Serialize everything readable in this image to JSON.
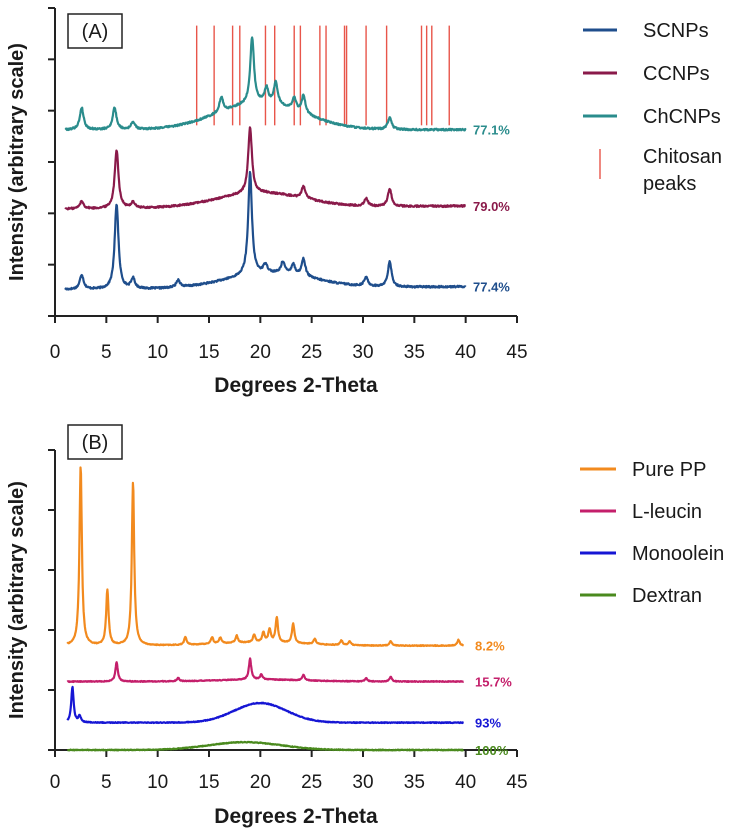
{
  "chart_data": [
    {
      "type": "line",
      "panel_label": "(A)",
      "xlabel": "Degrees 2-Theta",
      "ylabel": "Intensity (arbitrary scale)",
      "xlim": [
        0,
        45
      ],
      "x_ticks": [
        "0",
        "5",
        "10",
        "15",
        "20",
        "25",
        "30",
        "35",
        "40",
        "45"
      ],
      "y_tick_count": 7,
      "grid": false,
      "legend_position": "right",
      "series": [
        {
          "name": "SCNPs",
          "color": "#1f4e8c",
          "offset": 0.0,
          "crystallinity": "77.4%",
          "baseline_start": 0.18,
          "baseline_end": 0.2,
          "hump_center": 21,
          "hump_height": 0.1,
          "hump_width": 6,
          "peaks": [
            [
              2.6,
              0.1
            ],
            [
              6.0,
              0.58
            ],
            [
              7.6,
              0.07
            ],
            [
              12.0,
              0.05
            ],
            [
              19.0,
              0.7
            ],
            [
              20.5,
              0.06
            ],
            [
              22.2,
              0.08
            ],
            [
              23.2,
              0.07
            ],
            [
              24.2,
              0.12
            ],
            [
              30.3,
              0.06
            ],
            [
              32.6,
              0.17
            ]
          ]
        },
        {
          "name": "CCNPs",
          "color": "#8a1a4a",
          "offset": 0.55,
          "crystallinity": "79.0%",
          "baseline_start": 0.18,
          "baseline_end": 0.2,
          "hump_center": 20,
          "hump_height": 0.1,
          "hump_width": 6,
          "peaks": [
            [
              2.6,
              0.05
            ],
            [
              6.0,
              0.4
            ],
            [
              7.6,
              0.04
            ],
            [
              19.0,
              0.45
            ],
            [
              24.2,
              0.08
            ],
            [
              30.3,
              0.05
            ],
            [
              32.6,
              0.12
            ]
          ]
        },
        {
          "name": "ChCNPs",
          "color": "#2a8c8c",
          "offset": 1.05,
          "crystallinity": "77.1%",
          "baseline_start": 0.22,
          "baseline_end": 0.22,
          "hump_center": 20,
          "hump_height": 0.18,
          "hump_width": 6,
          "peaks": [
            [
              2.6,
              0.15
            ],
            [
              5.8,
              0.15
            ],
            [
              7.6,
              0.05
            ],
            [
              16.2,
              0.1
            ],
            [
              19.2,
              0.45
            ],
            [
              20.6,
              0.1
            ],
            [
              21.5,
              0.15
            ],
            [
              23.3,
              0.08
            ],
            [
              24.2,
              0.12
            ],
            [
              32.6,
              0.08
            ]
          ]
        }
      ],
      "reference": {
        "name": "Chitosan peaks",
        "color": "#e8554a",
        "positions": [
          13.8,
          15.5,
          17.3,
          18.0,
          20.5,
          21.4,
          23.3,
          23.9,
          25.8,
          26.4,
          28.2,
          28.4,
          30.3,
          32.3,
          35.7,
          36.2,
          36.7,
          38.4
        ]
      },
      "legend": [
        "SCNPs",
        "CCNPs",
        "ChCNPs",
        "Chitosan peaks"
      ]
    },
    {
      "type": "line",
      "panel_label": "(B)",
      "xlabel": "Degrees 2-Theta",
      "ylabel": "Intensity (arbitrary scale)",
      "xlim": [
        0,
        45
      ],
      "x_ticks": [
        "0",
        "5",
        "10",
        "15",
        "20",
        "25",
        "30",
        "35",
        "40",
        "45"
      ],
      "y_tick_count": 6,
      "grid": false,
      "legend_position": "right",
      "series": [
        {
          "name": "Pure PP",
          "color": "#f28a1e",
          "offset": 1.6,
          "crystallinity": "8.2%",
          "baseline_start": 0.0,
          "baseline_end": 0.0,
          "hump_center": 20,
          "hump_height": 0.05,
          "hump_width": 6,
          "peaks": [
            [
              2.5,
              2.75
            ],
            [
              5.1,
              0.85
            ],
            [
              7.6,
              2.5
            ],
            [
              12.7,
              0.12
            ],
            [
              15.3,
              0.1
            ],
            [
              16.1,
              0.09
            ],
            [
              17.7,
              0.11
            ],
            [
              19.4,
              0.12
            ],
            [
              20.3,
              0.15
            ],
            [
              20.9,
              0.2
            ],
            [
              21.6,
              0.38
            ],
            [
              23.2,
              0.3
            ],
            [
              25.3,
              0.08
            ],
            [
              27.9,
              0.07
            ],
            [
              28.7,
              0.06
            ],
            [
              32.7,
              0.07
            ],
            [
              39.3,
              0.09
            ]
          ]
        },
        {
          "name": "L-leucin",
          "color": "#c41f6b",
          "offset": 1.05,
          "crystallinity": "15.7%",
          "baseline_start": 0.0,
          "baseline_end": 0.0,
          "hump_center": 20,
          "hump_height": 0.03,
          "hump_width": 6,
          "peaks": [
            [
              6.0,
              0.3
            ],
            [
              12.0,
              0.05
            ],
            [
              19.0,
              0.32
            ],
            [
              20.1,
              0.08
            ],
            [
              24.2,
              0.08
            ],
            [
              30.3,
              0.05
            ],
            [
              32.7,
              0.07
            ]
          ]
        },
        {
          "name": "Monoolein",
          "color": "#1616d4",
          "offset": 0.42,
          "crystallinity": "93%",
          "baseline_start": 0.0,
          "baseline_end": 0.0,
          "hump_center": 20,
          "hump_height": 0.3,
          "hump_width": 3.6,
          "peaks": [
            [
              1.7,
              0.55
            ],
            [
              2.4,
              0.1
            ]
          ]
        },
        {
          "name": "Dextran",
          "color": "#4a8a1e",
          "offset": 0.0,
          "crystallinity": "100%",
          "baseline_start": 0.0,
          "baseline_end": 0.0,
          "hump_center": 18.5,
          "hump_height": 0.12,
          "hump_width": 5,
          "peaks": []
        }
      ],
      "legend": [
        "Pure PP",
        "L-leucin",
        "Monoolein",
        "Dextran"
      ]
    }
  ]
}
